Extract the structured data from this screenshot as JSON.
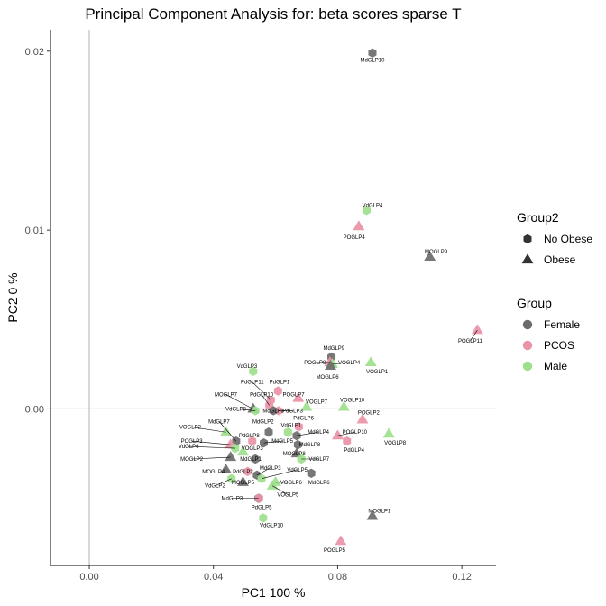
{
  "chart_data": {
    "type": "scatter",
    "title": "Principal Component Analysis for:  beta scores sparse T",
    "xlabel": "PC1 100 %",
    "ylabel": "PC2 0 %",
    "xlim": [
      -0.0125,
      0.131
    ],
    "ylim": [
      -0.00875,
      0.0212
    ],
    "x_ticks": [
      {
        "value": 0.0,
        "label": "0.00"
      },
      {
        "value": 0.04,
        "label": "0.04"
      },
      {
        "value": 0.08,
        "label": "0.08"
      },
      {
        "value": 0.12,
        "label": "0.12"
      }
    ],
    "y_ticks": [
      {
        "value": 0.0,
        "label": "0.00"
      },
      {
        "value": 0.01,
        "label": "0.01"
      },
      {
        "value": 0.02,
        "label": "0.02"
      }
    ],
    "reference_lines": {
      "x": 0,
      "y": 0
    },
    "grid": false,
    "group_colors": {
      "Female": "#6b6b6b",
      "PCOS": "#e993a6",
      "Male": "#9ddf8c"
    },
    "legends": [
      {
        "title": "Group2",
        "kind": "shape",
        "entries": [
          {
            "label": "No Obese",
            "shape": "hex"
          },
          {
            "label": "Obese",
            "shape": "triangle"
          }
        ]
      },
      {
        "title": "Group",
        "kind": "color",
        "entries": [
          {
            "label": "Female",
            "group": "Female"
          },
          {
            "label": "PCOS",
            "group": "PCOS"
          },
          {
            "label": "Male",
            "group": "Male"
          }
        ]
      }
    ],
    "legend_position": "right",
    "points": [
      {
        "label": "MdGLP10",
        "x": 0.0912,
        "y": 0.0199,
        "group": "Female",
        "shape": "hex",
        "lx": 0.0912,
        "ly": 0.0195
      },
      {
        "label": "VdGLP4",
        "x": 0.0893,
        "y": 0.0111,
        "group": "Male",
        "shape": "hex",
        "lx": 0.0912,
        "ly": 0.0114
      },
      {
        "label": "POGLP4",
        "x": 0.0868,
        "y": 0.0102,
        "group": "PCOS",
        "shape": "triangle",
        "lx": 0.0853,
        "ly": 0.0096
      },
      {
        "label": "MOGLP9",
        "x": 0.1097,
        "y": 0.0085,
        "group": "Female",
        "shape": "triangle",
        "lx": 0.1117,
        "ly": 0.0088
      },
      {
        "label": "POGLP11",
        "x": 0.125,
        "y": 0.0044,
        "group": "PCOS",
        "shape": "triangle",
        "lx": 0.1227,
        "ly": 0.0038
      },
      {
        "label": "MdGLP9",
        "x": 0.078,
        "y": 0.0029,
        "group": "Female",
        "shape": "hex",
        "lx": 0.0788,
        "ly": 0.0034
      },
      {
        "label": "POGLP8",
        "x": 0.0775,
        "y": 0.0026,
        "group": "PCOS",
        "shape": "triangle",
        "lx": 0.0727,
        "ly": 0.0026
      },
      {
        "label": "VOGLP4",
        "x": 0.0783,
        "y": 0.0025,
        "group": "Male",
        "shape": "triangle",
        "lx": 0.0837,
        "ly": 0.0026
      },
      {
        "label": "MOGLP6",
        "x": 0.0777,
        "y": 0.0024,
        "group": "Female",
        "shape": "triangle",
        "lx": 0.0767,
        "ly": 0.0018
      },
      {
        "label": "VOGLP1",
        "x": 0.0907,
        "y": 0.0026,
        "group": "Male",
        "shape": "triangle",
        "lx": 0.0927,
        "ly": 0.0021
      },
      {
        "label": "VdGLP3",
        "x": 0.0528,
        "y": 0.0021,
        "group": "Male",
        "shape": "hex",
        "lx": 0.0508,
        "ly": 0.0024
      },
      {
        "label": "PdGLP1",
        "x": 0.0608,
        "y": 0.001,
        "group": "PCOS",
        "shape": "hex",
        "lx": 0.0613,
        "ly": 0.0015
      },
      {
        "label": "PdGLP11",
        "x": 0.0585,
        "y": 0.0005,
        "group": "PCOS",
        "shape": "hex",
        "lx": 0.0525,
        "ly": 0.0015
      },
      {
        "label": "POGLP7",
        "x": 0.0673,
        "y": 0.0006,
        "group": "PCOS",
        "shape": "triangle",
        "lx": 0.0658,
        "ly": 0.0008
      },
      {
        "label": "PdGLP10",
        "x": 0.058,
        "y": 0.0002,
        "group": "PCOS",
        "shape": "hex",
        "lx": 0.0555,
        "ly": 0.0008
      },
      {
        "label": "VOGLP7",
        "x": 0.07,
        "y": 0.0001,
        "group": "Male",
        "shape": "triangle",
        "lx": 0.0732,
        "ly": 0.0004
      },
      {
        "label": "VOGLP10",
        "x": 0.082,
        "y": 0.0001,
        "group": "Male",
        "shape": "triangle",
        "lx": 0.0847,
        "ly": 0.0005
      },
      {
        "label": "MOGLP7",
        "x": 0.0528,
        "y": 0.0,
        "group": "Female",
        "shape": "triangle",
        "lx": 0.044,
        "ly": 0.0008
      },
      {
        "label": "VdGLP8",
        "x": 0.0535,
        "y": -0.0001,
        "group": "Male",
        "shape": "hex",
        "lx": 0.0472,
        "ly": 0.0
      },
      {
        "label": "PdGLP3",
        "x": 0.061,
        "y": -0.0001,
        "group": "PCOS",
        "shape": "hex",
        "lx": 0.0655,
        "ly": -0.0001
      },
      {
        "label": "MdGLP3",
        "x": 0.0593,
        "y": -0.0001,
        "group": "Female",
        "shape": "hex",
        "lx": 0.0593,
        "ly": -0.0001
      },
      {
        "label": "MdGLP2",
        "x": 0.0578,
        "y": -0.0013,
        "group": "Female",
        "shape": "hex",
        "lx": 0.056,
        "ly": -0.0007
      },
      {
        "label": "POGLP2",
        "x": 0.088,
        "y": -0.0006,
        "group": "PCOS",
        "shape": "triangle",
        "lx": 0.09,
        "ly": -0.0002
      },
      {
        "label": "PdGLP6",
        "x": 0.0675,
        "y": -0.001,
        "group": "PCOS",
        "shape": "hex",
        "lx": 0.069,
        "ly": -0.0005
      },
      {
        "label": "VdGLP1",
        "x": 0.064,
        "y": -0.0013,
        "group": "Male",
        "shape": "hex",
        "lx": 0.065,
        "ly": -0.0009
      },
      {
        "label": "MdGLP4",
        "x": 0.0668,
        "y": -0.0015,
        "group": "Female",
        "shape": "hex",
        "lx": 0.0738,
        "ly": -0.0013
      },
      {
        "label": "VOGLP2",
        "x": 0.044,
        "y": -0.0013,
        "group": "Male",
        "shape": "triangle",
        "lx": 0.0325,
        "ly": -0.001
      },
      {
        "label": "MdGLP7",
        "x": 0.0473,
        "y": -0.0018,
        "group": "Female",
        "shape": "hex",
        "lx": 0.0418,
        "ly": -0.0007
      },
      {
        "label": "PdGLP8",
        "x": 0.0525,
        "y": -0.0018,
        "group": "PCOS",
        "shape": "hex",
        "lx": 0.0515,
        "ly": -0.0015
      },
      {
        "label": "POGLP10",
        "x": 0.08,
        "y": -0.0015,
        "group": "PCOS",
        "shape": "triangle",
        "lx": 0.0855,
        "ly": -0.0013
      },
      {
        "label": "PdGLP4",
        "x": 0.083,
        "y": -0.0018,
        "group": "PCOS",
        "shape": "hex",
        "lx": 0.0853,
        "ly": -0.0023
      },
      {
        "label": "VOGLP8",
        "x": 0.0965,
        "y": -0.0014,
        "group": "Male",
        "shape": "triangle",
        "lx": 0.0985,
        "ly": -0.0019
      },
      {
        "label": "POGLP3",
        "x": 0.0455,
        "y": -0.002,
        "group": "PCOS",
        "shape": "triangle",
        "lx": 0.033,
        "ly": -0.0018
      },
      {
        "label": "VOGLP3",
        "x": 0.0495,
        "y": -0.0024,
        "group": "Male",
        "shape": "triangle",
        "lx": 0.0525,
        "ly": -0.0022
      },
      {
        "label": "MdGLP5",
        "x": 0.0562,
        "y": -0.0019,
        "group": "Female",
        "shape": "hex",
        "lx": 0.0622,
        "ly": -0.0018
      },
      {
        "label": "MdGLP8",
        "x": 0.0672,
        "y": -0.002,
        "group": "Female",
        "shape": "hex",
        "lx": 0.071,
        "ly": -0.002
      },
      {
        "label": "VdGLP6",
        "x": 0.047,
        "y": -0.0022,
        "group": "Male",
        "shape": "hex",
        "lx": 0.032,
        "ly": -0.0021
      },
      {
        "label": "MOGLP8",
        "x": 0.0668,
        "y": -0.0025,
        "group": "Female",
        "shape": "triangle",
        "lx": 0.066,
        "ly": -0.0025
      },
      {
        "label": "VdGLP7",
        "x": 0.0683,
        "y": -0.0028,
        "group": "Male",
        "shape": "hex",
        "lx": 0.074,
        "ly": -0.0028
      },
      {
        "label": "MOGLP2",
        "x": 0.0455,
        "y": -0.0027,
        "group": "Female",
        "shape": "triangle",
        "lx": 0.033,
        "ly": -0.0028
      },
      {
        "label": "MdGLP1",
        "x": 0.0535,
        "y": -0.0028,
        "group": "Female",
        "shape": "hex",
        "lx": 0.052,
        "ly": -0.0028
      },
      {
        "label": "MOGLP4",
        "x": 0.044,
        "y": -0.0034,
        "group": "Female",
        "shape": "triangle",
        "lx": 0.04,
        "ly": -0.0035
      },
      {
        "label": "PdGLP2",
        "x": 0.051,
        "y": -0.0035,
        "group": "PCOS",
        "shape": "hex",
        "lx": 0.0495,
        "ly": -0.0035
      },
      {
        "label": "MdGLP3b",
        "display": "MdGLP3",
        "x": 0.054,
        "y": -0.0037,
        "group": "Female",
        "shape": "hex",
        "lx": 0.0583,
        "ly": -0.0033
      },
      {
        "label": "VdGLP5",
        "x": 0.0555,
        "y": -0.0039,
        "group": "Male",
        "shape": "hex",
        "lx": 0.067,
        "ly": -0.0034
      },
      {
        "label": "MdGLP6",
        "x": 0.0715,
        "y": -0.0036,
        "group": "Female",
        "shape": "hex",
        "lx": 0.074,
        "ly": -0.0041
      },
      {
        "label": "VdGLP2",
        "x": 0.0458,
        "y": -0.0039,
        "group": "Male",
        "shape": "hex",
        "lx": 0.0405,
        "ly": -0.0043
      },
      {
        "label": "MOGLP5",
        "x": 0.0495,
        "y": -0.0041,
        "group": "Female",
        "shape": "triangle",
        "lx": 0.0495,
        "ly": -0.0041
      },
      {
        "label": "VOGLP6",
        "x": 0.06,
        "y": -0.0041,
        "group": "Male",
        "shape": "triangle",
        "lx": 0.065,
        "ly": -0.0041
      },
      {
        "label": "VOGLP5",
        "x": 0.059,
        "y": -0.0043,
        "group": "Male",
        "shape": "triangle",
        "lx": 0.064,
        "ly": -0.0048
      },
      {
        "label": "MdGLP3c",
        "display": "MdGLP3",
        "x": 0.0545,
        "y": -0.005,
        "group": "Female",
        "shape": "hex",
        "lx": 0.046,
        "ly": -0.005
      },
      {
        "label": "PdGLP5",
        "x": 0.0547,
        "y": -0.005,
        "group": "PCOS",
        "shape": "hex",
        "lx": 0.0555,
        "ly": -0.0055
      },
      {
        "label": "VdGLP10",
        "x": 0.056,
        "y": -0.0061,
        "group": "Male",
        "shape": "hex",
        "lx": 0.0587,
        "ly": -0.0065
      },
      {
        "label": "MOGLP1",
        "x": 0.0912,
        "y": -0.006,
        "group": "Female",
        "shape": "triangle",
        "lx": 0.0935,
        "ly": -0.0057
      },
      {
        "label": "POGLP5",
        "x": 0.081,
        "y": -0.0074,
        "group": "PCOS",
        "shape": "triangle",
        "lx": 0.079,
        "ly": -0.0079
      }
    ]
  }
}
